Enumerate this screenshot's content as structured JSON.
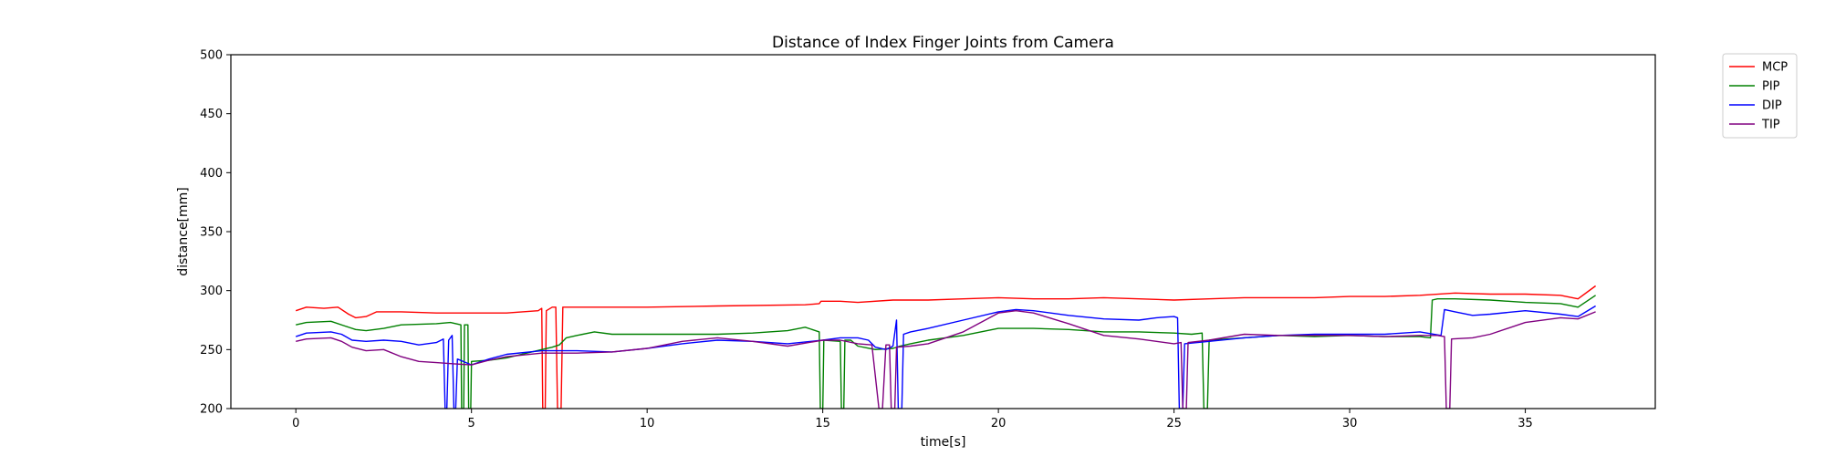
{
  "chart_data": {
    "type": "line",
    "title": "Distance of Index Finger Joints from Camera",
    "xlabel": "time[s]",
    "ylabel": "distance[mm]",
    "xlim": [
      -1.85,
      38.7
    ],
    "ylim": [
      200,
      500
    ],
    "xticks": [
      0,
      5,
      10,
      15,
      20,
      25,
      30,
      35
    ],
    "yticks": [
      200,
      250,
      300,
      350,
      400,
      450,
      500
    ],
    "grid": false,
    "legend": "outside-top-right",
    "series": [
      {
        "name": "MCP",
        "color": "#ff0000",
        "points": [
          [
            0,
            283
          ],
          [
            0.3,
            286
          ],
          [
            0.8,
            285
          ],
          [
            1.2,
            286
          ],
          [
            1.5,
            280
          ],
          [
            1.7,
            277
          ],
          [
            2.0,
            278
          ],
          [
            2.3,
            282
          ],
          [
            3.0,
            282
          ],
          [
            4.0,
            281
          ],
          [
            5.0,
            281
          ],
          [
            6.0,
            281
          ],
          [
            6.9,
            283
          ],
          [
            7.0,
            285
          ],
          [
            7.03,
            200
          ],
          [
            7.1,
            200
          ],
          [
            7.13,
            283
          ],
          [
            7.3,
            286
          ],
          [
            7.4,
            286
          ],
          [
            7.45,
            200
          ],
          [
            7.55,
            200
          ],
          [
            7.6,
            286
          ],
          [
            8.0,
            286
          ],
          [
            10.0,
            286
          ],
          [
            12.0,
            287
          ],
          [
            14.5,
            288
          ],
          [
            14.9,
            289
          ],
          [
            14.95,
            291
          ],
          [
            15.5,
            291
          ],
          [
            16.0,
            290
          ],
          [
            17.0,
            292
          ],
          [
            18.0,
            292
          ],
          [
            19.0,
            293
          ],
          [
            20.0,
            294
          ],
          [
            21.0,
            293
          ],
          [
            22.0,
            293
          ],
          [
            23.0,
            294
          ],
          [
            24.0,
            293
          ],
          [
            25.0,
            292
          ],
          [
            26.0,
            293
          ],
          [
            27.0,
            294
          ],
          [
            28.0,
            294
          ],
          [
            29.0,
            294
          ],
          [
            30.0,
            295
          ],
          [
            31.0,
            295
          ],
          [
            32.0,
            296
          ],
          [
            33.0,
            298
          ],
          [
            34.0,
            297
          ],
          [
            35.0,
            297
          ],
          [
            36.0,
            296
          ],
          [
            36.5,
            293
          ],
          [
            37.0,
            304
          ]
        ]
      },
      {
        "name": "PIP",
        "color": "#008000",
        "points": [
          [
            0,
            271
          ],
          [
            0.3,
            273
          ],
          [
            1.0,
            274
          ],
          [
            1.4,
            270
          ],
          [
            1.7,
            267
          ],
          [
            2.0,
            266
          ],
          [
            2.5,
            268
          ],
          [
            3.0,
            271
          ],
          [
            4.0,
            272
          ],
          [
            4.4,
            273
          ],
          [
            4.7,
            271
          ],
          [
            4.72,
            200
          ],
          [
            4.78,
            200
          ],
          [
            4.8,
            271
          ],
          [
            4.9,
            271
          ],
          [
            4.92,
            200
          ],
          [
            4.98,
            200
          ],
          [
            5.0,
            240
          ],
          [
            5.5,
            241
          ],
          [
            6.0,
            243
          ],
          [
            7.0,
            250
          ],
          [
            7.3,
            252
          ],
          [
            7.5,
            254
          ],
          [
            7.7,
            260
          ],
          [
            8.0,
            262
          ],
          [
            8.5,
            265
          ],
          [
            9.0,
            263
          ],
          [
            10.0,
            263
          ],
          [
            11.0,
            263
          ],
          [
            12.0,
            263
          ],
          [
            13.0,
            264
          ],
          [
            14.0,
            266
          ],
          [
            14.5,
            269
          ],
          [
            14.9,
            265
          ],
          [
            14.93,
            200
          ],
          [
            15.0,
            200
          ],
          [
            15.03,
            258
          ],
          [
            15.5,
            257
          ],
          [
            15.53,
            200
          ],
          [
            15.6,
            200
          ],
          [
            15.63,
            258
          ],
          [
            15.8,
            258
          ],
          [
            16.0,
            253
          ],
          [
            16.5,
            250
          ],
          [
            17.0,
            251
          ],
          [
            17.2,
            253
          ],
          [
            17.5,
            255
          ],
          [
            18.0,
            258
          ],
          [
            19.0,
            262
          ],
          [
            20.0,
            268
          ],
          [
            21.0,
            268
          ],
          [
            22.0,
            267
          ],
          [
            23.0,
            265
          ],
          [
            24.0,
            265
          ],
          [
            25.0,
            264
          ],
          [
            25.5,
            263
          ],
          [
            25.8,
            264
          ],
          [
            25.85,
            200
          ],
          [
            25.95,
            200
          ],
          [
            26.0,
            258
          ],
          [
            27.0,
            260
          ],
          [
            28.0,
            262
          ],
          [
            29.0,
            261
          ],
          [
            30.0,
            262
          ],
          [
            31.0,
            261
          ],
          [
            32.0,
            261
          ],
          [
            32.3,
            260
          ],
          [
            32.35,
            292
          ],
          [
            32.5,
            293
          ],
          [
            33.0,
            293
          ],
          [
            34.0,
            292
          ],
          [
            35.0,
            290
          ],
          [
            36.0,
            289
          ],
          [
            36.5,
            286
          ],
          [
            37.0,
            296
          ]
        ]
      },
      {
        "name": "DIP",
        "color": "#0000ff",
        "points": [
          [
            0,
            261
          ],
          [
            0.3,
            264
          ],
          [
            1.0,
            265
          ],
          [
            1.3,
            263
          ],
          [
            1.6,
            258
          ],
          [
            2.0,
            257
          ],
          [
            2.5,
            258
          ],
          [
            3.0,
            257
          ],
          [
            3.5,
            254
          ],
          [
            4.0,
            256
          ],
          [
            4.2,
            259
          ],
          [
            4.25,
            200
          ],
          [
            4.3,
            200
          ],
          [
            4.35,
            258
          ],
          [
            4.45,
            262
          ],
          [
            4.5,
            200
          ],
          [
            4.55,
            200
          ],
          [
            4.6,
            242
          ],
          [
            5.0,
            237
          ],
          [
            5.5,
            242
          ],
          [
            6.0,
            246
          ],
          [
            7.0,
            249
          ],
          [
            8.0,
            249
          ],
          [
            9.0,
            248
          ],
          [
            10.0,
            251
          ],
          [
            11.0,
            255
          ],
          [
            12.0,
            258
          ],
          [
            13.0,
            257
          ],
          [
            14.0,
            255
          ],
          [
            15.0,
            258
          ],
          [
            15.5,
            260
          ],
          [
            16.0,
            260
          ],
          [
            16.3,
            258
          ],
          [
            16.5,
            252
          ],
          [
            16.8,
            250
          ],
          [
            17.0,
            253
          ],
          [
            17.1,
            275
          ],
          [
            17.15,
            200
          ],
          [
            17.25,
            200
          ],
          [
            17.3,
            263
          ],
          [
            17.5,
            265
          ],
          [
            18.0,
            268
          ],
          [
            19.0,
            275
          ],
          [
            20.0,
            282
          ],
          [
            20.5,
            284
          ],
          [
            21.0,
            283
          ],
          [
            22.0,
            279
          ],
          [
            23.0,
            276
          ],
          [
            24.0,
            275
          ],
          [
            24.5,
            277
          ],
          [
            25.0,
            278
          ],
          [
            25.1,
            277
          ],
          [
            25.15,
            200
          ],
          [
            25.25,
            200
          ],
          [
            25.3,
            255
          ],
          [
            26.0,
            257
          ],
          [
            27.0,
            260
          ],
          [
            28.0,
            262
          ],
          [
            29.0,
            263
          ],
          [
            30.0,
            263
          ],
          [
            31.0,
            263
          ],
          [
            32.0,
            265
          ],
          [
            32.6,
            262
          ],
          [
            32.7,
            284
          ],
          [
            33.0,
            282
          ],
          [
            33.5,
            279
          ],
          [
            34.0,
            280
          ],
          [
            35.0,
            283
          ],
          [
            36.0,
            280
          ],
          [
            36.5,
            278
          ],
          [
            37.0,
            287
          ]
        ]
      },
      {
        "name": "TIP",
        "color": "#800080",
        "points": [
          [
            0,
            257
          ],
          [
            0.3,
            259
          ],
          [
            1.0,
            260
          ],
          [
            1.3,
            257
          ],
          [
            1.6,
            252
          ],
          [
            2.0,
            249
          ],
          [
            2.5,
            250
          ],
          [
            3.0,
            244
          ],
          [
            3.5,
            240
          ],
          [
            4.0,
            239
          ],
          [
            4.5,
            238
          ],
          [
            5.0,
            237
          ],
          [
            5.5,
            241
          ],
          [
            6.0,
            244
          ],
          [
            7.0,
            247
          ],
          [
            8.0,
            247
          ],
          [
            9.0,
            248
          ],
          [
            10.0,
            251
          ],
          [
            11.0,
            257
          ],
          [
            12.0,
            260
          ],
          [
            13.0,
            257
          ],
          [
            14.0,
            253
          ],
          [
            15.0,
            258
          ],
          [
            15.5,
            258
          ],
          [
            16.0,
            255
          ],
          [
            16.4,
            254
          ],
          [
            16.6,
            200
          ],
          [
            16.7,
            200
          ],
          [
            16.8,
            254
          ],
          [
            16.9,
            254
          ],
          [
            16.95,
            200
          ],
          [
            17.05,
            200
          ],
          [
            17.1,
            252
          ],
          [
            17.5,
            253
          ],
          [
            18.0,
            255
          ],
          [
            19.0,
            265
          ],
          [
            20.0,
            281
          ],
          [
            20.5,
            283
          ],
          [
            21.0,
            281
          ],
          [
            22.0,
            272
          ],
          [
            23.0,
            262
          ],
          [
            24.0,
            259
          ],
          [
            25.0,
            255
          ],
          [
            25.2,
            256
          ],
          [
            25.25,
            200
          ],
          [
            25.35,
            200
          ],
          [
            25.4,
            256
          ],
          [
            26.0,
            258
          ],
          [
            27.0,
            263
          ],
          [
            28.0,
            262
          ],
          [
            29.0,
            262
          ],
          [
            30.0,
            262
          ],
          [
            31.0,
            261
          ],
          [
            32.0,
            262
          ],
          [
            32.5,
            262
          ],
          [
            32.7,
            261
          ],
          [
            32.75,
            200
          ],
          [
            32.85,
            200
          ],
          [
            32.9,
            259
          ],
          [
            33.5,
            260
          ],
          [
            34.0,
            263
          ],
          [
            35.0,
            273
          ],
          [
            36.0,
            277
          ],
          [
            36.5,
            276
          ],
          [
            37.0,
            282
          ]
        ]
      }
    ]
  }
}
